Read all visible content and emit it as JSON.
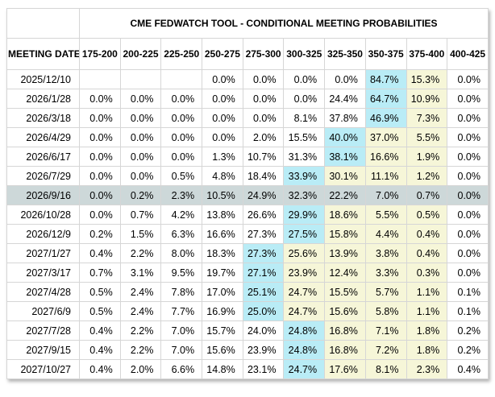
{
  "header": {
    "title": "CME FEDWATCH TOOL - CONDITIONAL MEETING PROBABILITIES",
    "meeting_date_label": "MEETING DATE"
  },
  "columns": [
    "175-200",
    "200-225",
    "225-250",
    "250-275",
    "275-300",
    "300-325",
    "325-350",
    "350-375",
    "375-400",
    "400-425"
  ],
  "rows": [
    {
      "date": "2025/12/10",
      "values": [
        "",
        "",
        "",
        "0.0%",
        "0.0%",
        "0.0%",
        "0.0%",
        "84.7%",
        "15.3%",
        "0.0%"
      ],
      "modal_index": 7,
      "yellow_indices": [
        8
      ],
      "selected": false
    },
    {
      "date": "2026/1/28",
      "values": [
        "0.0%",
        "0.0%",
        "0.0%",
        "0.0%",
        "0.0%",
        "0.0%",
        "24.4%",
        "64.7%",
        "10.9%",
        "0.0%"
      ],
      "modal_index": 7,
      "yellow_indices": [
        8
      ],
      "selected": false
    },
    {
      "date": "2026/3/18",
      "values": [
        "0.0%",
        "0.0%",
        "0.0%",
        "0.0%",
        "0.0%",
        "8.1%",
        "37.8%",
        "46.9%",
        "7.3%",
        "0.0%"
      ],
      "modal_index": 7,
      "yellow_indices": [
        8
      ],
      "selected": false
    },
    {
      "date": "2026/4/29",
      "values": [
        "0.0%",
        "0.0%",
        "0.0%",
        "0.0%",
        "2.0%",
        "15.5%",
        "40.0%",
        "37.0%",
        "5.5%",
        "0.0%"
      ],
      "modal_index": 6,
      "yellow_indices": [
        7,
        8
      ],
      "selected": false
    },
    {
      "date": "2026/6/17",
      "values": [
        "0.0%",
        "0.0%",
        "0.0%",
        "1.3%",
        "10.7%",
        "31.3%",
        "38.1%",
        "16.6%",
        "1.9%",
        "0.0%"
      ],
      "modal_index": 6,
      "yellow_indices": [
        7,
        8
      ],
      "selected": false
    },
    {
      "date": "2026/7/29",
      "values": [
        "0.0%",
        "0.0%",
        "0.5%",
        "4.8%",
        "18.4%",
        "33.9%",
        "30.1%",
        "11.1%",
        "1.2%",
        "0.0%"
      ],
      "modal_index": 5,
      "yellow_indices": [
        6,
        7,
        8
      ],
      "selected": false
    },
    {
      "date": "2026/9/16",
      "values": [
        "0.0%",
        "0.2%",
        "2.3%",
        "10.5%",
        "24.9%",
        "32.3%",
        "22.2%",
        "7.0%",
        "0.7%",
        "0.0%"
      ],
      "modal_index": null,
      "yellow_indices": [],
      "selected": true
    },
    {
      "date": "2026/10/28",
      "values": [
        "0.0%",
        "0.7%",
        "4.2%",
        "13.8%",
        "26.6%",
        "29.9%",
        "18.6%",
        "5.5%",
        "0.5%",
        "0.0%"
      ],
      "modal_index": 5,
      "yellow_indices": [
        6,
        7,
        8
      ],
      "selected": false
    },
    {
      "date": "2026/12/9",
      "values": [
        "0.2%",
        "1.5%",
        "6.3%",
        "16.6%",
        "27.3%",
        "27.5%",
        "15.8%",
        "4.4%",
        "0.4%",
        "0.0%"
      ],
      "modal_index": 5,
      "yellow_indices": [
        6,
        7,
        8
      ],
      "selected": false
    },
    {
      "date": "2027/1/27",
      "values": [
        "0.4%",
        "2.2%",
        "8.0%",
        "18.3%",
        "27.3%",
        "25.6%",
        "13.9%",
        "3.8%",
        "0.4%",
        "0.0%"
      ],
      "modal_index": 4,
      "yellow_indices": [
        5,
        6,
        7,
        8
      ],
      "selected": false
    },
    {
      "date": "2027/3/17",
      "values": [
        "0.7%",
        "3.1%",
        "9.5%",
        "19.7%",
        "27.1%",
        "23.9%",
        "12.4%",
        "3.3%",
        "0.3%",
        "0.0%"
      ],
      "modal_index": 4,
      "yellow_indices": [
        5,
        6,
        7,
        8
      ],
      "selected": false
    },
    {
      "date": "2027/4/28",
      "values": [
        "0.5%",
        "2.4%",
        "7.8%",
        "17.0%",
        "25.1%",
        "24.7%",
        "15.5%",
        "5.7%",
        "1.1%",
        "0.1%"
      ],
      "modal_index": 4,
      "yellow_indices": [
        5,
        6,
        7,
        8
      ],
      "selected": false
    },
    {
      "date": "2027/6/9",
      "values": [
        "0.5%",
        "2.4%",
        "7.7%",
        "16.9%",
        "25.0%",
        "24.7%",
        "15.6%",
        "5.8%",
        "1.1%",
        "0.1%"
      ],
      "modal_index": 4,
      "yellow_indices": [
        5,
        6,
        7,
        8
      ],
      "selected": false
    },
    {
      "date": "2027/7/28",
      "values": [
        "0.4%",
        "2.2%",
        "7.0%",
        "15.7%",
        "24.0%",
        "24.8%",
        "16.8%",
        "7.1%",
        "1.8%",
        "0.2%"
      ],
      "modal_index": 5,
      "yellow_indices": [
        6,
        7,
        8
      ],
      "selected": false
    },
    {
      "date": "2027/9/15",
      "values": [
        "0.4%",
        "2.2%",
        "7.0%",
        "15.6%",
        "23.9%",
        "24.8%",
        "16.8%",
        "7.2%",
        "1.8%",
        "0.2%"
      ],
      "modal_index": 5,
      "yellow_indices": [
        6,
        7,
        8
      ],
      "selected": false
    },
    {
      "date": "2027/10/27",
      "values": [
        "0.4%",
        "2.0%",
        "6.6%",
        "14.8%",
        "23.1%",
        "24.7%",
        "17.6%",
        "8.1%",
        "2.3%",
        "0.4%"
      ],
      "modal_index": 5,
      "yellow_indices": [
        6,
        7,
        8
      ],
      "selected": false
    }
  ],
  "colors": {
    "blue": "#b9ecf6",
    "yellow": "#f6f6d8",
    "selected": "#cdd8d9",
    "border": "#d6d6d6",
    "outer_border": "#c4c4c4",
    "text": "#000000",
    "background": "#ffffff"
  }
}
